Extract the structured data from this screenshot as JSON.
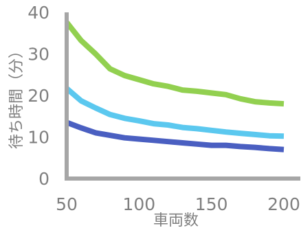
{
  "chart_data": {
    "type": "line",
    "title": "",
    "xlabel": "車両数",
    "ylabel": "待ち時間（分）",
    "xlim": [
      50,
      200
    ],
    "ylim": [
      0,
      40
    ],
    "grid": false,
    "legend": "none",
    "x_ticks": [
      "50",
      "100",
      "150",
      "200"
    ],
    "y_ticks": [
      "0",
      "10",
      "20",
      "30",
      "40"
    ],
    "x": [
      50,
      60,
      70,
      80,
      90,
      100,
      110,
      120,
      130,
      140,
      150,
      160,
      170,
      180,
      190,
      200
    ],
    "series": [
      {
        "color": "#92d050",
        "values": [
          37.6,
          33.2,
          30.0,
          26.4,
          24.8,
          23.8,
          22.8,
          22.2,
          21.3,
          21.0,
          20.6,
          20.2,
          19.2,
          18.5,
          18.2,
          18.0
        ]
      },
      {
        "color": "#5bc8ef",
        "values": [
          21.7,
          18.7,
          17.0,
          15.4,
          14.5,
          13.9,
          13.2,
          12.9,
          12.3,
          12.0,
          11.6,
          11.2,
          10.9,
          10.6,
          10.3,
          10.2
        ]
      },
      {
        "color": "#4a5fc1",
        "values": [
          13.5,
          12.2,
          11.0,
          10.4,
          9.8,
          9.5,
          9.2,
          8.9,
          8.6,
          8.3,
          8.0,
          8.0,
          7.7,
          7.5,
          7.2,
          7.0
        ]
      }
    ]
  }
}
